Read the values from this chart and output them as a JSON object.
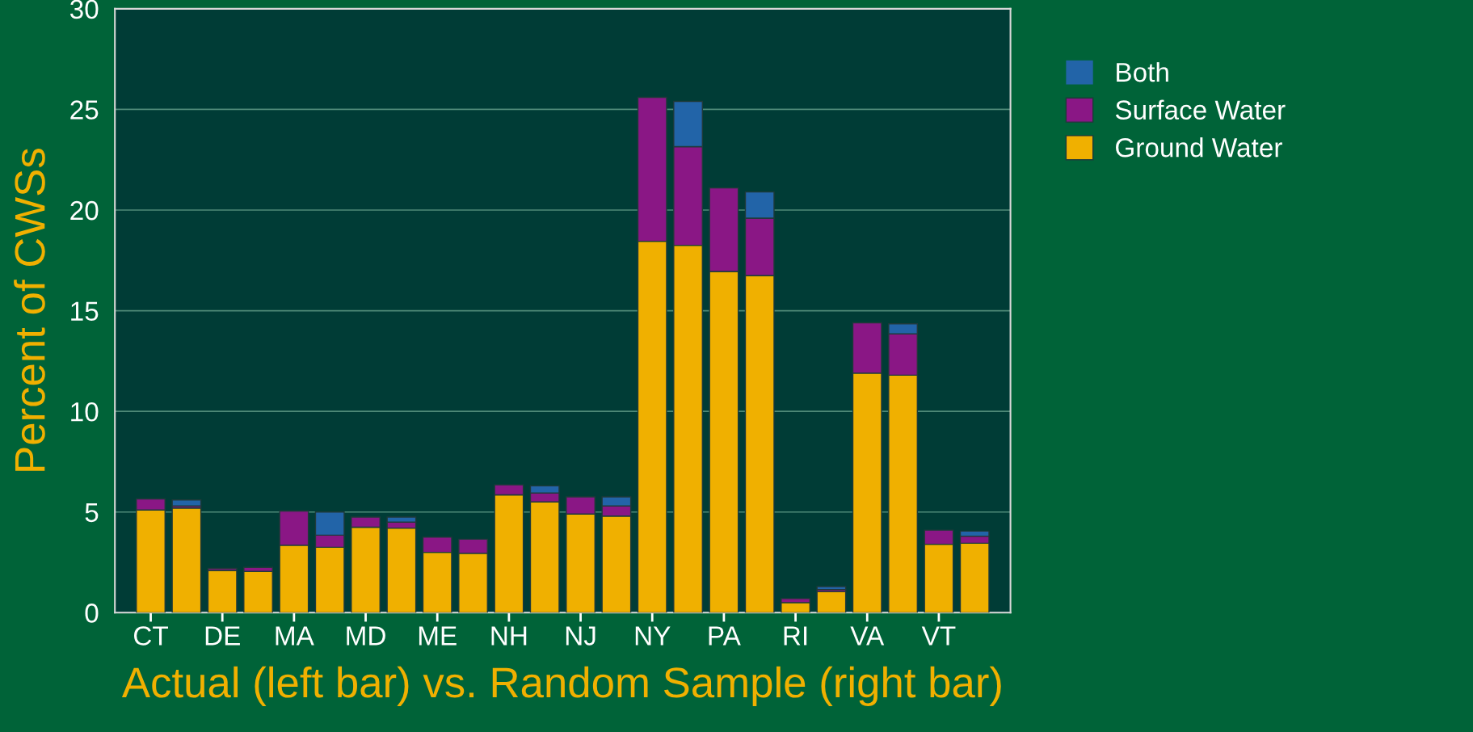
{
  "chart_data": {
    "type": "bar",
    "stacked": true,
    "xlabel": "Actual (left bar) vs. Random Sample (right bar)",
    "ylabel": "Percent of CWSs",
    "categories": [
      "CT",
      null,
      "DE",
      null,
      "MA",
      null,
      "MD",
      null,
      "ME",
      null,
      "NH",
      null,
      "NJ",
      null,
      "NY",
      null,
      "PA",
      null,
      "RI",
      null,
      "VA",
      null,
      "VT",
      null
    ],
    "series": [
      {
        "name": "Ground Water",
        "color": "#f0b000",
        "values": [
          5.1,
          5.2,
          2.1,
          2.05,
          3.35,
          3.25,
          4.25,
          4.2,
          3.0,
          2.95,
          5.85,
          5.5,
          4.9,
          4.8,
          18.45,
          18.25,
          16.95,
          16.75,
          0.5,
          1.05,
          11.9,
          11.8,
          3.4,
          3.45
        ]
      },
      {
        "name": "Surface Water",
        "color": "#8a1785",
        "values": [
          0.55,
          0.1,
          0.1,
          0.2,
          1.7,
          0.6,
          0.5,
          0.3,
          0.75,
          0.7,
          0.5,
          0.45,
          0.85,
          0.5,
          7.15,
          4.9,
          4.15,
          2.85,
          0.2,
          0.1,
          2.5,
          2.05,
          0.7,
          0.35
        ]
      },
      {
        "name": "Both",
        "color": "#2264a8",
        "values": [
          0,
          0.3,
          0,
          0,
          0,
          1.15,
          0,
          0.25,
          0,
          0,
          0,
          0.35,
          0,
          0.45,
          0,
          2.25,
          0,
          1.3,
          0,
          0.15,
          0,
          0.5,
          0,
          0.25
        ]
      }
    ],
    "ylim": [
      0,
      30
    ],
    "yticks": [
      0,
      5,
      10,
      15,
      20,
      25,
      30
    ],
    "grid": "y",
    "legend": "right"
  }
}
